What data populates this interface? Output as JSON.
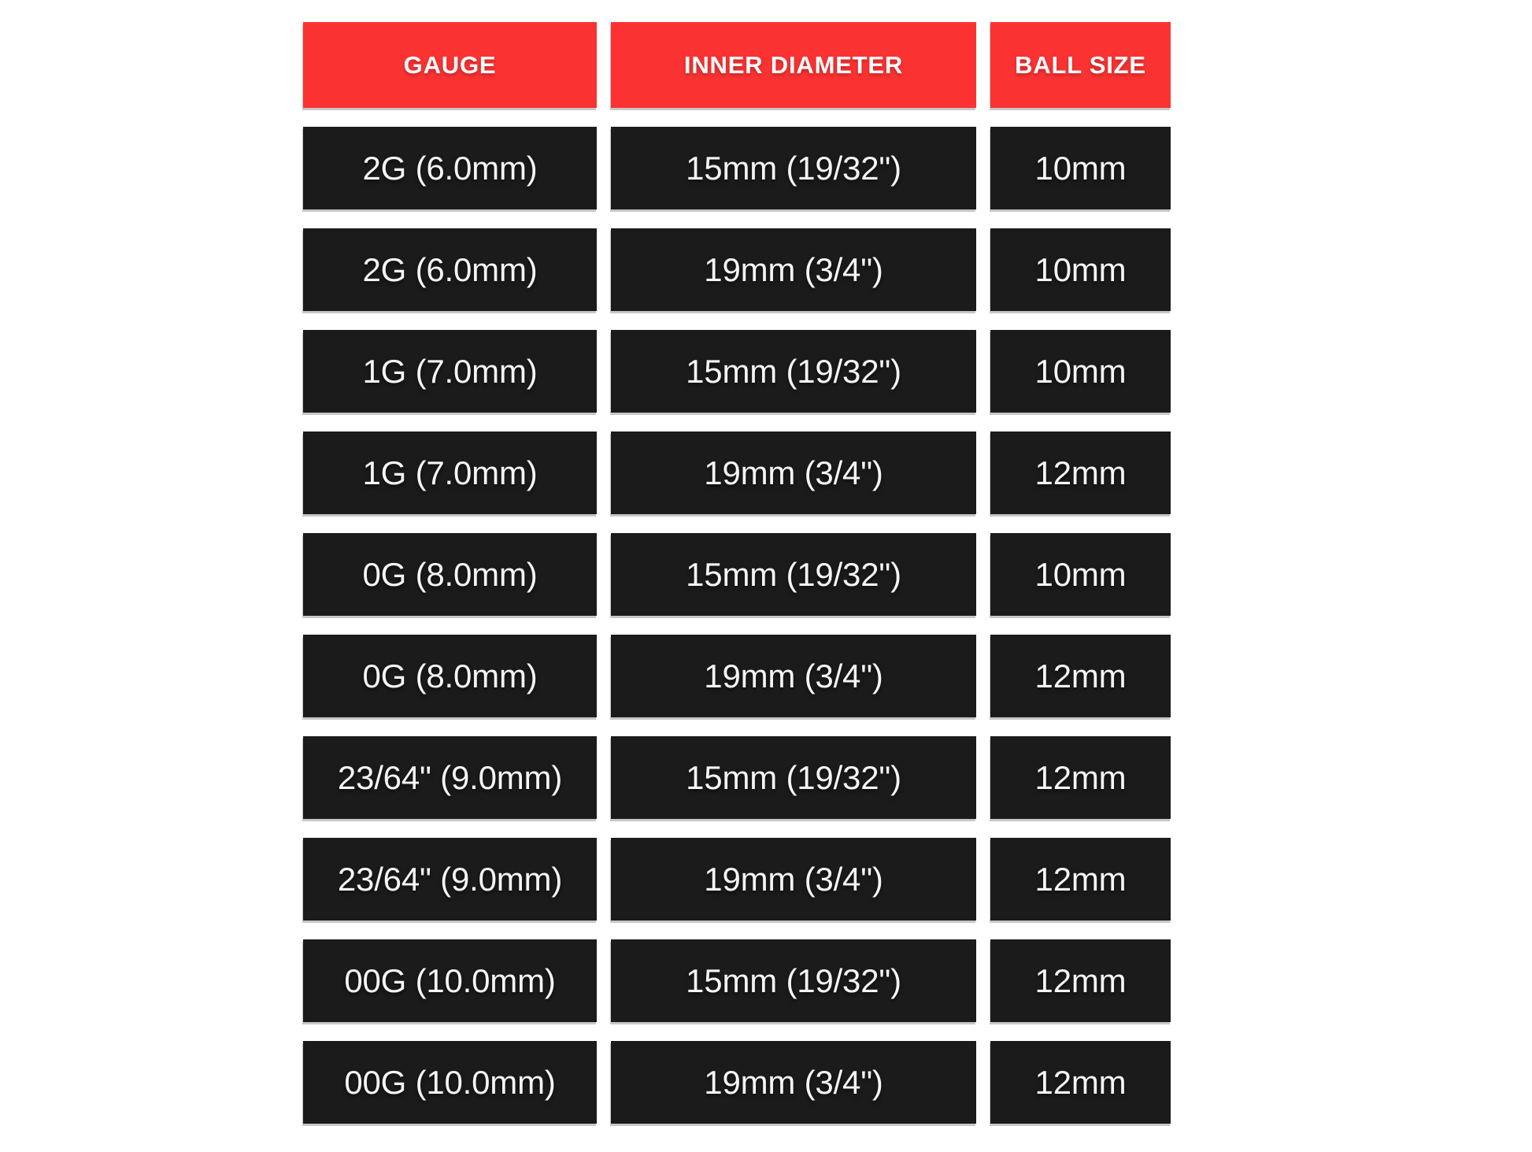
{
  "page": {
    "background": "#FFFFFF"
  },
  "chart_data": {
    "type": "table",
    "title": "",
    "columns": [
      "GAUGE",
      "INNER DIAMETER",
      "BALL SIZE"
    ],
    "rows": [
      [
        "2G (6.0mm)",
        "15mm (19/32\")",
        "10mm"
      ],
      [
        "2G (6.0mm)",
        "19mm (3/4\")",
        "10mm"
      ],
      [
        "1G (7.0mm)",
        "15mm (19/32\")",
        "10mm"
      ],
      [
        "1G (7.0mm)",
        "19mm (3/4\")",
        "12mm"
      ],
      [
        "0G (8.0mm)",
        "15mm (19/32\")",
        "10mm"
      ],
      [
        "0G (8.0mm)",
        "19mm (3/4\")",
        "12mm"
      ],
      [
        "23/64\" (9.0mm)",
        "15mm (19/32\")",
        "12mm"
      ],
      [
        "23/64\" (9.0mm)",
        "19mm (3/4\")",
        "12mm"
      ],
      [
        "00G (10.0mm)",
        "15mm (19/32\")",
        "12mm"
      ],
      [
        "00G (10.0mm)",
        "19mm (3/4\")",
        "12mm"
      ]
    ],
    "colors": {
      "header_bg": "#FB3232",
      "header_text": "#FFFFFF",
      "cell_bg": "#1B1B1B",
      "cell_text": "#F5F5F5"
    },
    "layout": {
      "grid": "off",
      "legend": "none",
      "header_position": "top"
    }
  }
}
